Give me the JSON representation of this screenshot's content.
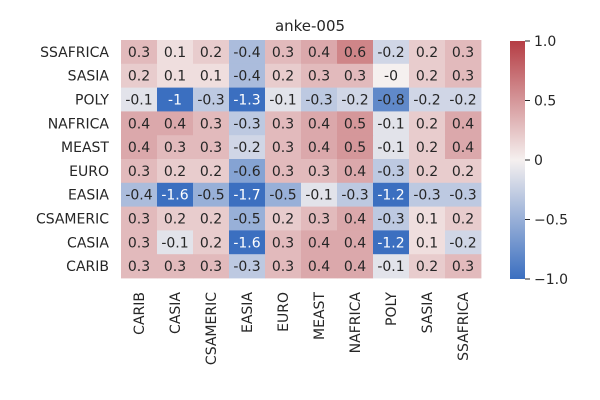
{
  "chart_data": {
    "type": "heatmap",
    "title": "anke-005",
    "xlabel": "",
    "ylabel": "",
    "x_categories": [
      "CARIB",
      "CASIA",
      "CSAMERIC",
      "EASIA",
      "EURO",
      "MEAST",
      "NAFRICA",
      "POLY",
      "SASIA",
      "SSAFRICA"
    ],
    "y_categories": [
      "SSAFRICA",
      "SASIA",
      "POLY",
      "NAFRICA",
      "MEAST",
      "EURO",
      "EASIA",
      "CSAMERIC",
      "CASIA",
      "CARIB"
    ],
    "values": [
      [
        "0.3",
        "0.1",
        "0.2",
        "-0.4",
        "0.3",
        "0.4",
        "0.6",
        "-0.2",
        "0.2",
        "0.3"
      ],
      [
        "0.2",
        "0.1",
        "0.1",
        "-0.4",
        "0.2",
        "0.3",
        "0.3",
        "-0",
        "0.2",
        "0.3"
      ],
      [
        "-0.1",
        "-1",
        "-0.3",
        "-1.3",
        "-0.1",
        "-0.3",
        "-0.2",
        "-0.8",
        "-0.2",
        "-0.2"
      ],
      [
        "0.4",
        "0.4",
        "0.3",
        "-0.3",
        "0.3",
        "0.4",
        "0.5",
        "-0.1",
        "0.2",
        "0.4"
      ],
      [
        "0.4",
        "0.3",
        "0.3",
        "-0.2",
        "0.3",
        "0.4",
        "0.5",
        "-0.1",
        "0.2",
        "0.4"
      ],
      [
        "0.3",
        "0.2",
        "0.2",
        "-0.6",
        "0.3",
        "0.3",
        "0.4",
        "-0.3",
        "0.2",
        "0.2"
      ],
      [
        "-0.4",
        "-1.6",
        "-0.5",
        "-1.7",
        "-0.5",
        "-0.1",
        "-0.3",
        "-1.2",
        "-0.3",
        "-0.3"
      ],
      [
        "0.3",
        "0.2",
        "0.2",
        "-0.5",
        "0.2",
        "0.3",
        "0.4",
        "-0.3",
        "0.1",
        "0.2"
      ],
      [
        "0.3",
        "-0.1",
        "0.2",
        "-1.6",
        "0.3",
        "0.4",
        "0.4",
        "-1.2",
        "0.1",
        "-0.2"
      ],
      [
        "0.3",
        "0.3",
        "0.3",
        "-0.3",
        "0.3",
        "0.4",
        "0.4",
        "-0.1",
        "0.2",
        "0.3"
      ]
    ],
    "colorscale": {
      "min": -1.0,
      "max": 1.0,
      "low_color": "#3b6fc0",
      "mid_color": "#f5f0ef",
      "high_color": "#b53d44",
      "ticks": [
        "-1.0",
        "-0.5",
        "0",
        "0.5",
        "1.0"
      ],
      "tick_labels": [
        "−1.0",
        "−0.5",
        "0",
        "0.5",
        "1.0"
      ]
    },
    "grid": false,
    "colorbar_position": "right"
  }
}
